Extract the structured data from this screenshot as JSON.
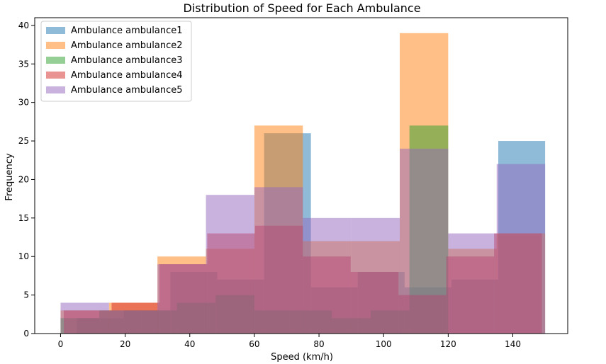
{
  "chart_data": {
    "type": "histogram",
    "title": "Distribution of Speed for Each Ambulance",
    "xlabel": "Speed (km/h)",
    "ylabel": "Frequency",
    "xlim": [
      -8,
      157
    ],
    "ylim": [
      0,
      41
    ],
    "xticks": [
      0,
      20,
      40,
      60,
      80,
      100,
      120,
      140
    ],
    "yticks": [
      0,
      5,
      10,
      15,
      20,
      25,
      30,
      35,
      40
    ],
    "legend_position": "top-left",
    "opacity": 0.5,
    "series": [
      {
        "name": "Ambulance ambulance1",
        "color": "#1f77b4",
        "edges": [
          5.0,
          19.5,
          34.0,
          48.5,
          63.0,
          77.5,
          92.0,
          106.5,
          121.0,
          135.5,
          150.0
        ],
        "counts": [
          2,
          3,
          8,
          7,
          26,
          6,
          8,
          6,
          7,
          25
        ]
      },
      {
        "name": "Ambulance ambulance2",
        "color": "#ff7f0e",
        "edges": [
          0.0,
          15.0,
          30.0,
          45.0,
          60.0,
          75.0,
          90.0,
          105.0,
          120.0,
          135.0,
          150.0
        ],
        "counts": [
          3,
          4,
          10,
          11,
          27,
          12,
          12,
          39,
          11,
          13
        ]
      },
      {
        "name": "Ambulance ambulance3",
        "color": "#2ca02c",
        "edges": [
          0.0,
          12.0,
          24.0,
          36.0,
          48.0,
          60.0,
          72.0,
          84.0,
          96.0,
          108.0,
          120.0
        ],
        "counts": [
          2,
          3,
          3,
          4,
          5,
          3,
          3,
          2,
          3,
          27
        ]
      },
      {
        "name": "Ambulance ambulance4",
        "color": "#d62728",
        "edges": [
          1.0,
          15.8,
          30.6,
          45.4,
          60.2,
          75.0,
          89.8,
          104.6,
          119.4,
          134.2,
          149.0
        ],
        "counts": [
          3,
          4,
          9,
          13,
          14,
          10,
          8,
          5,
          10,
          13
        ]
      },
      {
        "name": "Ambulance ambulance5",
        "color": "#9467bd",
        "edges": [
          0.0,
          15.0,
          30.0,
          45.0,
          60.0,
          75.0,
          90.0,
          105.0,
          120.0,
          135.0,
          150.0
        ],
        "counts": [
          4,
          3,
          9,
          18,
          19,
          15,
          15,
          24,
          13,
          22
        ]
      }
    ]
  }
}
